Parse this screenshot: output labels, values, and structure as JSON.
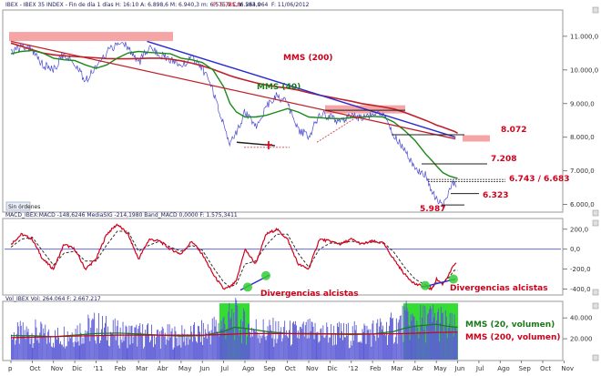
{
  "header": {
    "price": {
      "text": "IBEX - IBEX 35 INDEX - Fin de día 1 días  H: 16:10  A: 6.898,6  M: 6.940,3  m: 6.575,9  C: 6.583,9",
      "extra": "P: 5.785,8",
      "vol": "V: 264.064",
      "date": "F: 11/06/2012"
    },
    "macd": "MACD_IBEX:MACD -148,6246  MediaSIG -214,1980  Band_MACD 0,0000  F: 1.575,3411",
    "vol": "Vol_IBEX Vol: 264.064  F: 2.667.217"
  },
  "price_button": "Sin órdenes",
  "price_panel": {
    "y_ticks": [
      "11.000,0",
      "10.000,0",
      "9.000,0",
      "8.000,0",
      "7.000,0",
      "6.000,0"
    ],
    "annotations": {
      "mms200": "MMS (200)",
      "mms40": "MMS (40)",
      "l8072": "8.072",
      "l7208": "7.208",
      "l6743": "6.743 / 6.683",
      "l6323": "6.323",
      "l5987": "5.987"
    }
  },
  "macd_panel": {
    "y_ticks": [
      "200,0",
      "0,0",
      "-200,0",
      "-400,0"
    ],
    "annotations": {
      "div1": "Divergencias alcistas",
      "div2": "Divergencias alcistas"
    }
  },
  "vol_panel": {
    "y_ticks": [
      "40.000",
      "20.000"
    ],
    "annotations": {
      "mms20": "MMS (20, volumen)",
      "mms200v": "MMS (200, volumen)"
    }
  },
  "x_ticks": [
    "p",
    "Oct",
    "Nov",
    "Dic",
    "'11",
    "Feb",
    "Mar",
    "Abr",
    "May",
    "Jun",
    "Jul",
    "Ago",
    "Sep",
    "Oct",
    "Nov",
    "Dic",
    "'12",
    "Feb",
    "Mar",
    "Abr",
    "May",
    "Jun",
    "Jul",
    "Ago",
    "Sep",
    "Oct",
    "Nov"
  ],
  "chart_data": {
    "type": "line",
    "x_axis": {
      "unit": "month",
      "labels": [
        "p",
        "Oct",
        "Nov",
        "Dic",
        "'11",
        "Feb",
        "Mar",
        "Abr",
        "May",
        "Jun",
        "Jul",
        "Ago",
        "Sep",
        "Oct",
        "Nov",
        "Dic",
        "'12",
        "Feb",
        "Mar",
        "Abr",
        "May",
        "Jun",
        "Jul",
        "Ago",
        "Sep",
        "Oct",
        "Nov"
      ]
    },
    "price": {
      "ylim": [
        5800,
        11700
      ],
      "months": [
        0,
        0.5,
        1,
        1.5,
        2,
        2.5,
        3,
        3.5,
        4,
        4.5,
        5,
        5.5,
        6,
        6.5,
        7,
        7.5,
        8,
        8.5,
        9,
        9.5,
        10,
        10.3,
        10.6,
        11,
        11.5,
        12,
        12.5,
        13,
        13.5,
        14,
        14.5,
        15,
        15.5,
        16,
        16.5,
        17,
        17.5,
        18,
        18.5,
        19,
        19.5,
        19.8,
        20,
        20.3,
        20.6,
        20.85,
        21
      ],
      "close": [
        10500,
        10700,
        10600,
        10150,
        10000,
        10500,
        10200,
        9650,
        10100,
        10500,
        10800,
        10700,
        10200,
        10700,
        10450,
        10300,
        10100,
        10350,
        10050,
        9400,
        8400,
        7800,
        8100,
        8750,
        8300,
        8900,
        9250,
        9000,
        8250,
        8000,
        8700,
        8600,
        8450,
        8650,
        8550,
        8650,
        8650,
        8100,
        7600,
        7050,
        6900,
        6400,
        6200,
        5990,
        6400,
        6700,
        6580
      ],
      "mms40": [
        10480,
        10550,
        10580,
        10500,
        10350,
        10300,
        10280,
        10150,
        10050,
        10150,
        10350,
        10500,
        10550,
        10520,
        10500,
        10480,
        10350,
        10300,
        10220,
        10000,
        9500,
        9000,
        8750,
        8600,
        8600,
        8650,
        8750,
        8850,
        8750,
        8600,
        8580,
        8560,
        8550,
        8580,
        8600,
        8620,
        8600,
        8450,
        8200,
        7900,
        7500,
        7300,
        7150,
        6950,
        6850,
        6800,
        6780
      ],
      "mms200": [
        10800,
        10700,
        10600,
        10500,
        10450,
        10420,
        10400,
        10380,
        10360,
        10340,
        10330,
        10330,
        10340,
        10350,
        10350,
        10320,
        10270,
        10200,
        10120,
        10020,
        9900,
        9830,
        9770,
        9700,
        9620,
        9550,
        9500,
        9460,
        9400,
        9320,
        9250,
        9190,
        9130,
        9070,
        9000,
        8950,
        8900,
        8840,
        8740,
        8620,
        8500,
        8420,
        8360,
        8300,
        8230,
        8170,
        8120
      ],
      "trendline_upper": [
        {
          "x": 6.4,
          "y": 10850
        },
        {
          "x": 20.9,
          "y": 8000
        }
      ],
      "trendline_lower": [
        {
          "x": 0,
          "y": 10850
        },
        {
          "x": 20.9,
          "y": 7950
        }
      ],
      "levels": [
        8072,
        7208,
        6743,
        6683,
        6323,
        5987
      ]
    },
    "macd": {
      "ylim": [
        -450,
        280
      ],
      "months": [
        0,
        0.5,
        1,
        1.5,
        2,
        2.5,
        3,
        3.5,
        4,
        4.5,
        5,
        5.5,
        6,
        6.5,
        7,
        7.5,
        8,
        8.5,
        9,
        9.5,
        10,
        10.3,
        10.6,
        11,
        11.5,
        12,
        12.5,
        13,
        13.5,
        14,
        14.5,
        15,
        15.5,
        16,
        16.5,
        17,
        17.5,
        18,
        18.5,
        19,
        19.5,
        19.8,
        20,
        20.3,
        20.6,
        20.85,
        21
      ],
      "macd": [
        50,
        150,
        100,
        -100,
        -200,
        50,
        0,
        -200,
        -100,
        150,
        250,
        150,
        -100,
        100,
        80,
        0,
        -50,
        80,
        -50,
        -250,
        -400,
        -380,
        -320,
        0,
        -150,
        150,
        200,
        100,
        -150,
        -200,
        100,
        80,
        50,
        100,
        50,
        80,
        60,
        -100,
        -250,
        -350,
        -380,
        -400,
        -300,
        -350,
        -250,
        -150,
        -148
      ],
      "signal": [
        20,
        100,
        120,
        -20,
        -160,
        -40,
        -20,
        -120,
        -120,
        40,
        180,
        180,
        -20,
        40,
        80,
        20,
        -20,
        40,
        -10,
        -180,
        -330,
        -380,
        -350,
        -150,
        -120,
        40,
        150,
        150,
        -40,
        -180,
        0,
        60,
        60,
        80,
        60,
        70,
        70,
        -30,
        -180,
        -300,
        -360,
        -380,
        -340,
        -340,
        -280,
        -210,
        -214
      ],
      "zero": 0
    },
    "volume": {
      "ylim": [
        0,
        55000
      ],
      "months": [
        0,
        1,
        2,
        3,
        4,
        5,
        6,
        7,
        8,
        9,
        10,
        10.5,
        11,
        12,
        13,
        14,
        15,
        16,
        17,
        18,
        18.5,
        19,
        19.5,
        20,
        20.5,
        21
      ],
      "volume": [
        22000,
        25000,
        20000,
        26000,
        30000,
        24000,
        23000,
        22000,
        21000,
        24000,
        33000,
        38000,
        30000,
        26000,
        24000,
        25000,
        24000,
        23000,
        26000,
        29000,
        36000,
        33000,
        35000,
        37000,
        30000,
        26400
      ],
      "mms20": [
        23000,
        23000,
        22000,
        23500,
        25000,
        25500,
        24500,
        23500,
        22500,
        23000,
        27000,
        31000,
        30000,
        27000,
        25000,
        24500,
        24500,
        24000,
        24500,
        27000,
        30000,
        32000,
        33000,
        34000,
        32000,
        31000
      ],
      "mms200": [
        21000,
        21500,
        22000,
        22500,
        23000,
        23500,
        23500,
        23500,
        23500,
        23500,
        24000,
        24500,
        25000,
        25000,
        25000,
        25000,
        24800,
        24700,
        24600,
        24800,
        25000,
        25300,
        25600,
        26000,
        26200,
        26400
      ]
    }
  }
}
